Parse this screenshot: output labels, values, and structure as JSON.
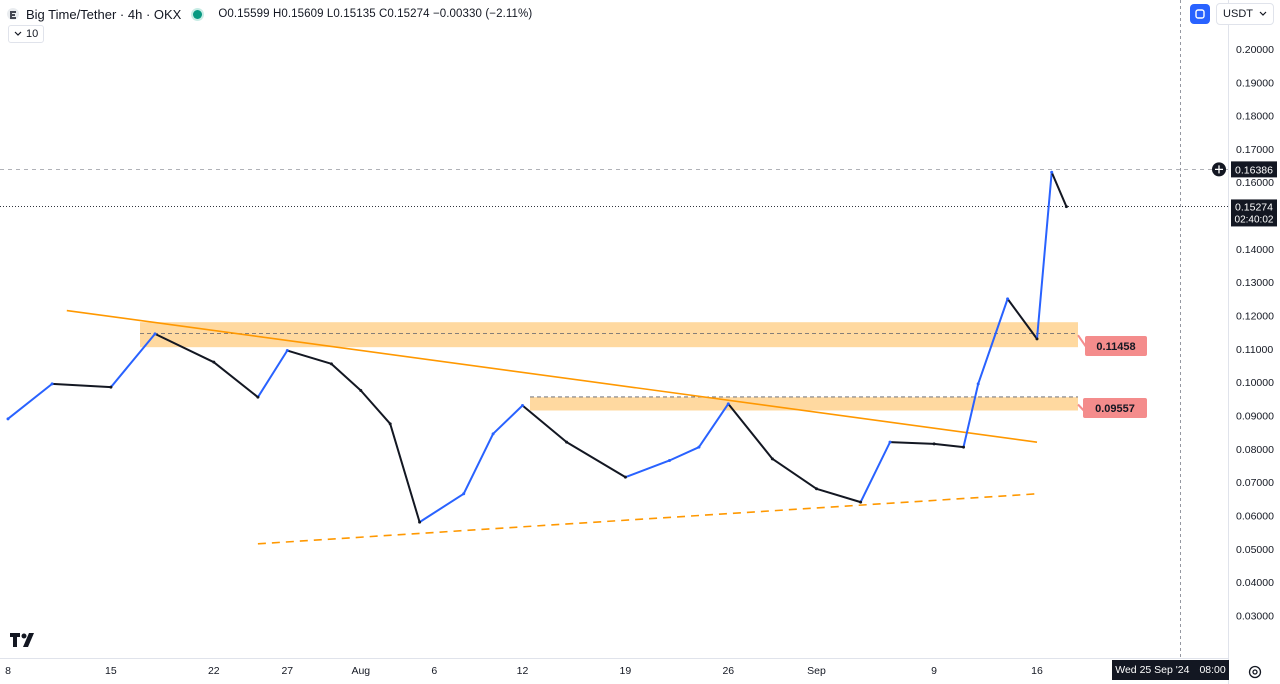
{
  "header": {
    "symbol": "Big Time/Tether · 4h · OKX",
    "ohlc": "O0.15599 H0.15609 L0.15135 C0.15274 −0.00330 (−2.11%)",
    "volume_chip": "10",
    "currency": "USDT"
  },
  "colors": {
    "up": "#2962ff",
    "down": "#131722",
    "trendline": "#ff9800",
    "zone_fill": "#ffcc80",
    "callout": "#f48c8c",
    "status_dot": "#089981"
  },
  "chart_data": {
    "type": "line",
    "title": "Big Time/Tether · 4h · OKX",
    "xlabel": "",
    "ylabel": "",
    "currency": "USDT",
    "ylim": [
      0.03,
      0.21
    ],
    "y_ticks": [
      "0.21000",
      "0.20000",
      "0.19000",
      "0.18000",
      "0.17000",
      "0.16000",
      "0.15000",
      "0.14000",
      "0.13000",
      "0.12000",
      "0.11000",
      "0.10000",
      "0.09000",
      "0.08000",
      "0.07000",
      "0.06000",
      "0.05000",
      "0.04000",
      "0.03000"
    ],
    "x_ticks": [
      "8",
      "15",
      "22",
      "27",
      "Aug",
      "6",
      "12",
      "19",
      "26",
      "Sep",
      "9",
      "16"
    ],
    "crosshair_date": "Wed 25 Sep '24",
    "crosshair_time": "08:00",
    "last_price": "0.15274",
    "countdown": "02:40:02",
    "crosshair_price": "0.16386",
    "series": [
      {
        "x": [
          "Jul 8",
          "Jul 11",
          "Jul 15",
          "Jul 18",
          "Jul 22",
          "Jul 25",
          "Jul 27",
          "Jul 30",
          "Aug 1",
          "Aug 3",
          "Aug 5",
          "Aug 8",
          "Aug 10",
          "Aug 12",
          "Aug 15",
          "Aug 19",
          "Aug 22",
          "Aug 24",
          "Aug 26",
          "Aug 29",
          "Sep 1",
          "Sep 4",
          "Sep 6",
          "Sep 9",
          "Sep 11",
          "Sep 12",
          "Sep 14",
          "Sep 16",
          "Sep 17",
          "Sep 18"
        ],
        "values": [
          0.089,
          0.0995,
          0.0985,
          0.1145,
          0.106,
          0.0955,
          0.1095,
          0.1055,
          0.0975,
          0.0875,
          0.058,
          0.0665,
          0.0845,
          0.093,
          0.082,
          0.0715,
          0.0765,
          0.0805,
          0.0935,
          0.077,
          0.068,
          0.064,
          0.082,
          0.0815,
          0.0805,
          0.0995,
          0.125,
          0.113,
          0.163,
          0.1527
        ]
      }
    ],
    "annotations": [
      {
        "type": "zone",
        "y_low": 0.1105,
        "y_high": 0.118,
        "level": "0.11458"
      },
      {
        "type": "zone",
        "y_low": 0.0915,
        "y_high": 0.0955,
        "level": "0.09557"
      },
      {
        "type": "trendline",
        "style": "solid",
        "from": [
          "Jul 12",
          0.1215
        ],
        "to": [
          "Sep 16",
          0.082
        ]
      },
      {
        "type": "trendline",
        "style": "dashed",
        "from": [
          "Jul 25",
          0.0515
        ],
        "to": [
          "Sep 16",
          0.0665
        ]
      }
    ]
  }
}
